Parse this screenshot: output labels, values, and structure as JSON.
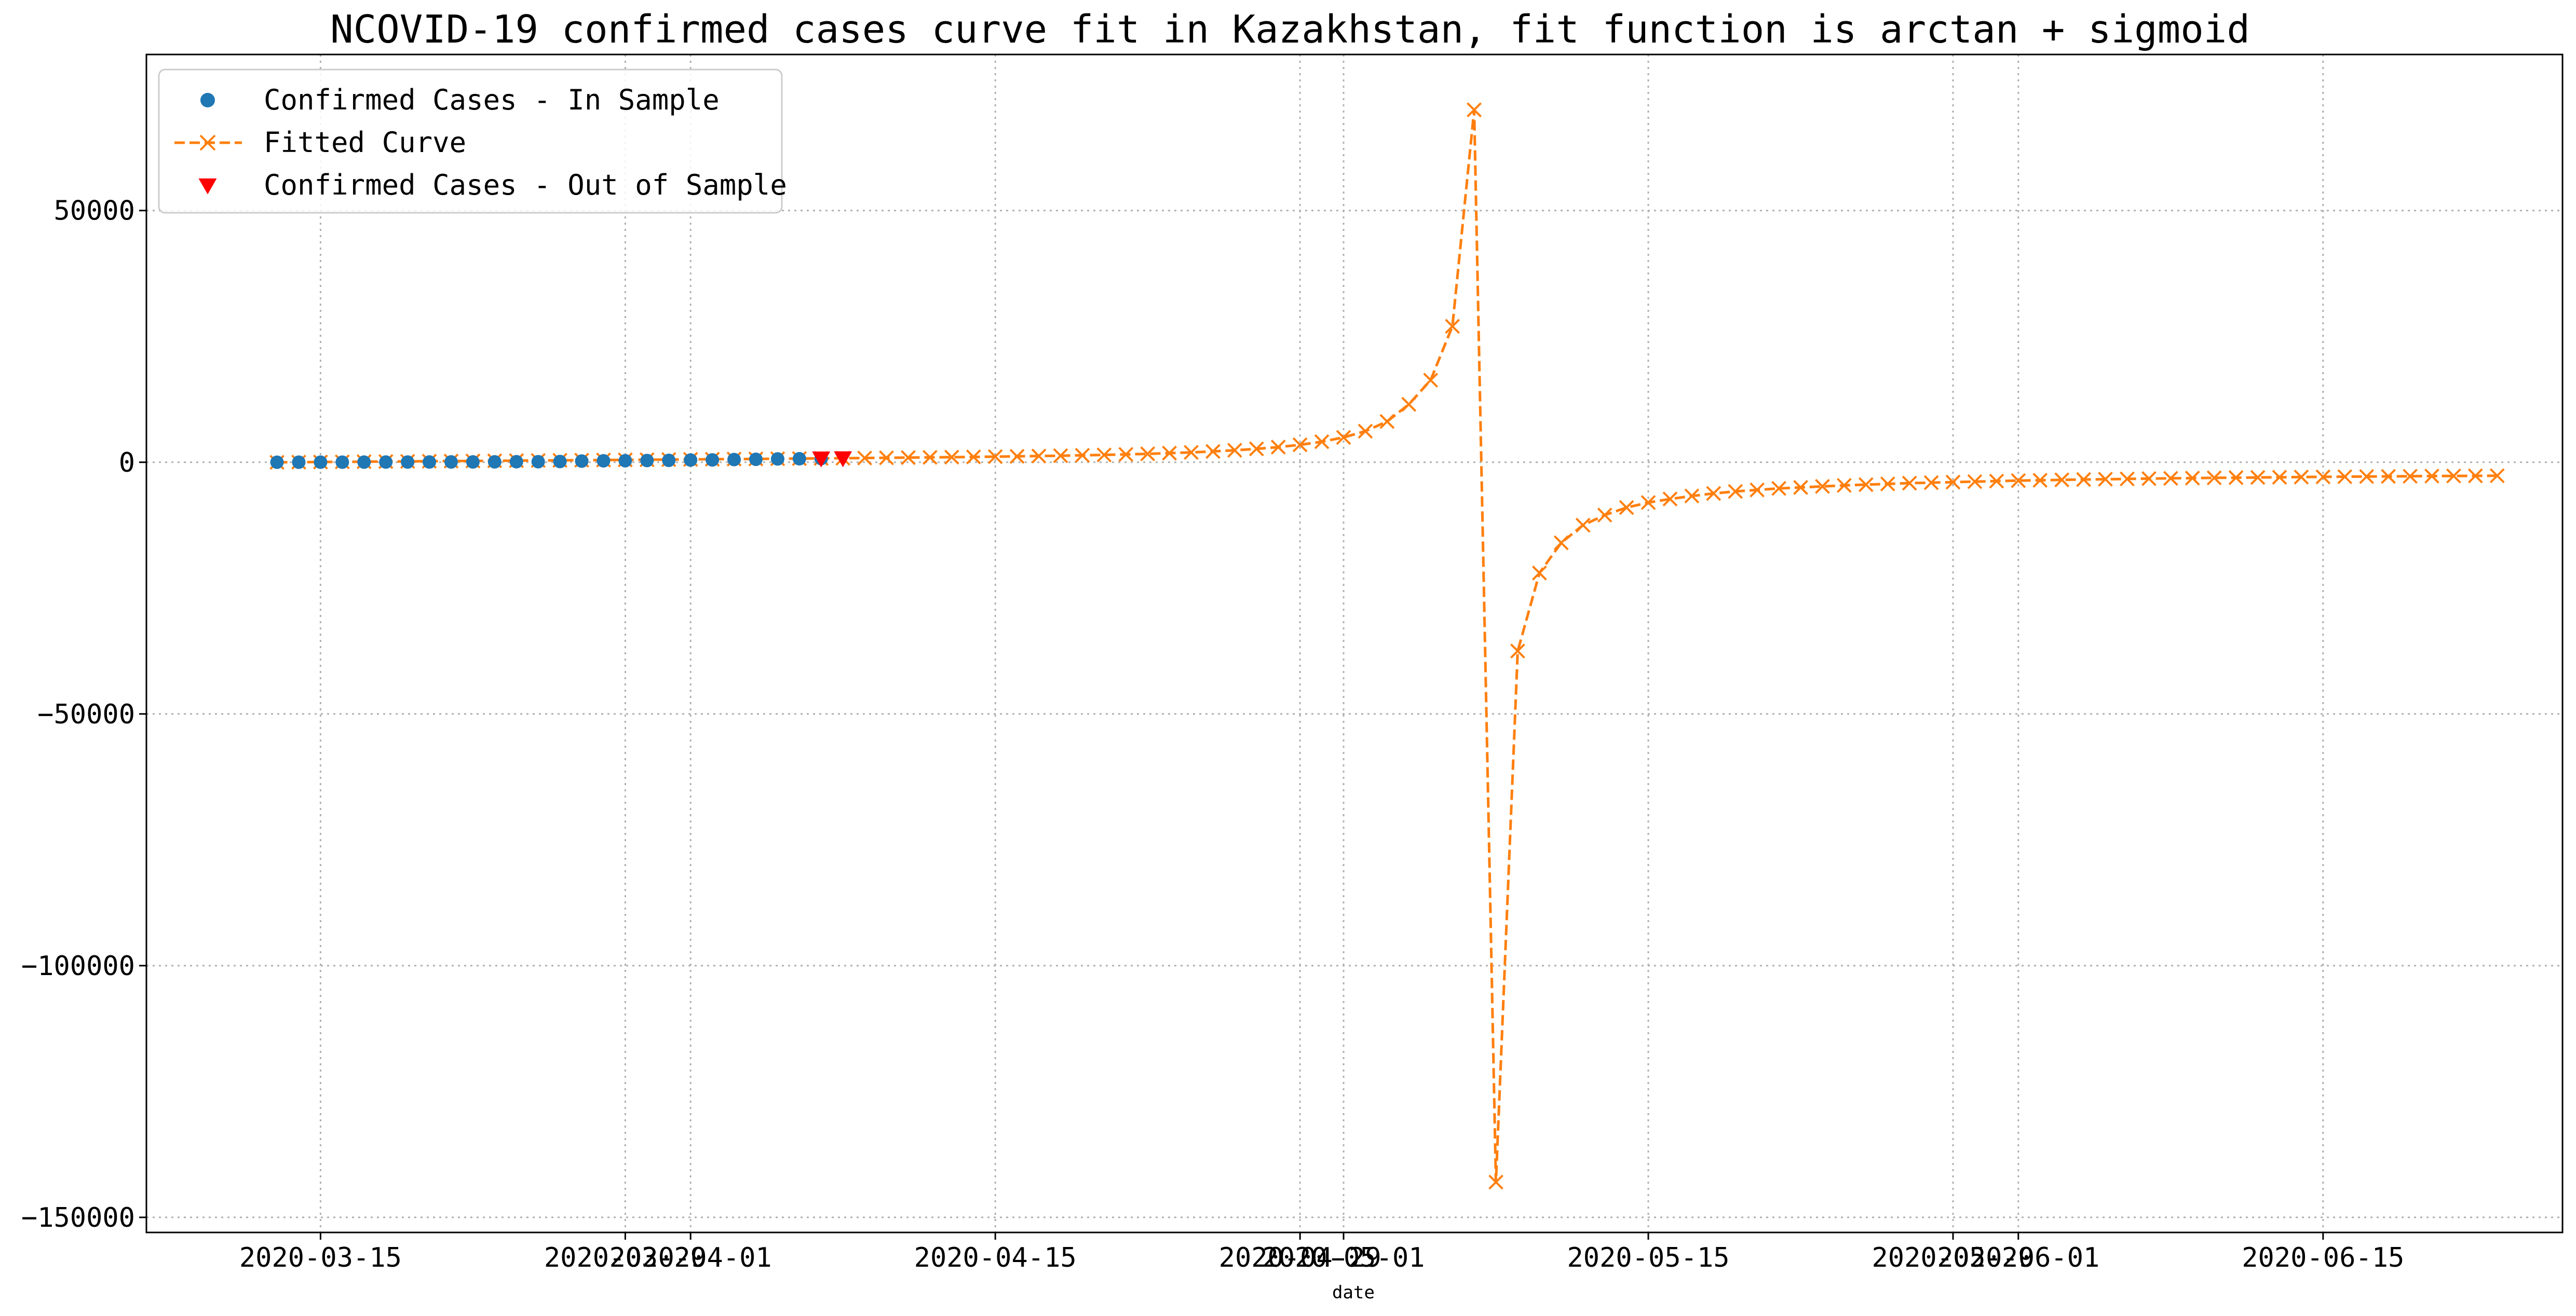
{
  "chart_data": {
    "type": "line",
    "title": "NCOVID-19 confirmed cases curve fit in Kazakhstan, fit function is arctan + sigmoid",
    "xlabel": "date",
    "ylabel": "",
    "x_range": [
      "2020-03-07",
      "2020-06-26"
    ],
    "ylim": [
      -153000,
      81000
    ],
    "grid": true,
    "legend_position": "top-left",
    "x_ticks": [
      {
        "date": "2020-03-15",
        "label": "2020-03-15"
      },
      {
        "date": "2020-03-29",
        "label": "2020-03-29"
      },
      {
        "date": "2020-04-01",
        "label": "2020-04-01"
      },
      {
        "date": "2020-04-15",
        "label": "2020-04-15"
      },
      {
        "date": "2020-04-29",
        "label": "2020-04-29"
      },
      {
        "date": "2020-05-01",
        "label": "2020-05-01"
      },
      {
        "date": "2020-05-15",
        "label": "2020-05-15"
      },
      {
        "date": "2020-05-29",
        "label": "2020-05-29"
      },
      {
        "date": "2020-06-01",
        "label": "2020-06-01"
      },
      {
        "date": "2020-06-15",
        "label": "2020-06-15"
      }
    ],
    "y_ticks": [
      {
        "value": 50000,
        "label": "50000"
      },
      {
        "value": 0,
        "label": "0"
      },
      {
        "value": -50000,
        "label": "−50000"
      },
      {
        "value": -100000,
        "label": "−100000"
      },
      {
        "value": -150000,
        "label": "−150000"
      }
    ],
    "series": [
      {
        "name": "Confirmed Cases - In Sample",
        "marker": "circle",
        "color": "#1f77b4",
        "start_date": "2020-03-13",
        "values": [
          6,
          9,
          10,
          18,
          33,
          36,
          44,
          53,
          60,
          62,
          79,
          100,
          111,
          150,
          228,
          284,
          302,
          343,
          380,
          435,
          464,
          531,
          584,
          662,
          697,
          727
        ]
      },
      {
        "name": "Fitted Curve",
        "marker": "x",
        "linestyle": "dashed",
        "color": "#ff7f0e",
        "start_date": "2020-03-13",
        "values": [
          -20,
          20,
          50,
          80,
          110,
          140,
          170,
          200,
          230,
          260,
          290,
          320,
          350,
          380,
          410,
          440,
          470,
          500,
          530,
          560,
          600,
          630,
          660,
          700,
          730,
          770,
          800,
          840,
          880,
          920,
          970,
          1010,
          1060,
          1110,
          1170,
          1230,
          1300,
          1380,
          1460,
          1560,
          1670,
          1810,
          1960,
          2150,
          2380,
          2660,
          3010,
          3460,
          4080,
          4930,
          6170,
          8100,
          11500,
          16300,
          27000,
          70000,
          -143000,
          -37500,
          -22000,
          -16000,
          -12500,
          -10500,
          -9000,
          -8000,
          -7300,
          -6700,
          -6200,
          -5800,
          -5500,
          -5200,
          -5000,
          -4800,
          -4600,
          -4450,
          -4300,
          -4150,
          -4050,
          -3950,
          -3850,
          -3750,
          -3650,
          -3580,
          -3500,
          -3430,
          -3370,
          -3310,
          -3250,
          -3200,
          -3150,
          -3100,
          -3060,
          -3020,
          -2980,
          -2940,
          -2900,
          -2870,
          -2840,
          -2810,
          -2780,
          -2750,
          -2720,
          -2700,
          -2680
        ]
      },
      {
        "name": "Confirmed Cases - Out of Sample",
        "marker": "triangle-down",
        "color": "#ff0000",
        "start_date": "2020-04-07",
        "values": [
          781,
          812
        ]
      }
    ]
  }
}
